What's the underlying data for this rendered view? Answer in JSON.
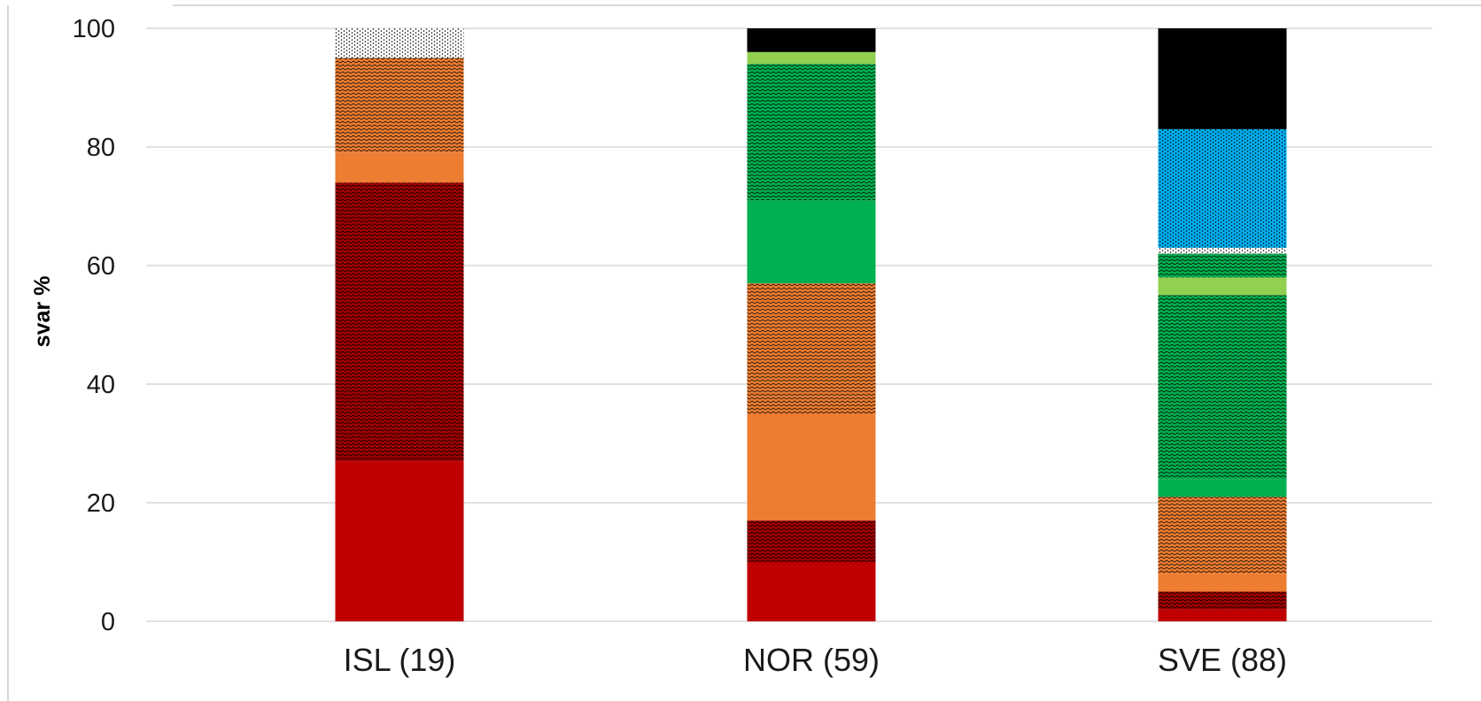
{
  "chart_data": {
    "type": "bar",
    "stacked": true,
    "title": "",
    "xlabel": "",
    "ylabel": "svar %",
    "ylim": [
      0,
      100
    ],
    "yticks": [
      "0",
      "20",
      "40",
      "60",
      "80",
      "100"
    ],
    "grid": true,
    "legend": "none",
    "categories": [
      "ISL (19)",
      "NOR (59)",
      "SVE (88)"
    ],
    "series": [
      {
        "color": "#c00000",
        "pattern": "solid",
        "values": [
          27,
          10,
          2
        ]
      },
      {
        "color": "#a00000",
        "pattern": "hatched",
        "values": [
          47,
          7,
          3
        ]
      },
      {
        "color": "#ed7d31",
        "pattern": "solid",
        "values": [
          5,
          18,
          3
        ]
      },
      {
        "color": "#ed7d31",
        "pattern": "hatched",
        "values": [
          16,
          22,
          13
        ]
      },
      {
        "color": "#00b050",
        "pattern": "solid",
        "values": [
          0,
          14,
          3
        ]
      },
      {
        "color": "#00b050",
        "pattern": "hatched",
        "values": [
          0,
          23,
          31
        ]
      },
      {
        "color": "#92d050",
        "pattern": "solid",
        "values": [
          0,
          2,
          3
        ]
      },
      {
        "color": "#00b050",
        "pattern": "hatched",
        "values": [
          0,
          0,
          4
        ]
      },
      {
        "color": "#ffffff",
        "pattern": "dotted",
        "values": [
          5,
          0,
          1
        ]
      },
      {
        "color": "#00b0f0",
        "pattern": "dotted",
        "values": [
          0,
          0,
          20
        ]
      },
      {
        "color": "#000000",
        "pattern": "solid",
        "values": [
          0,
          4,
          17
        ]
      }
    ]
  }
}
